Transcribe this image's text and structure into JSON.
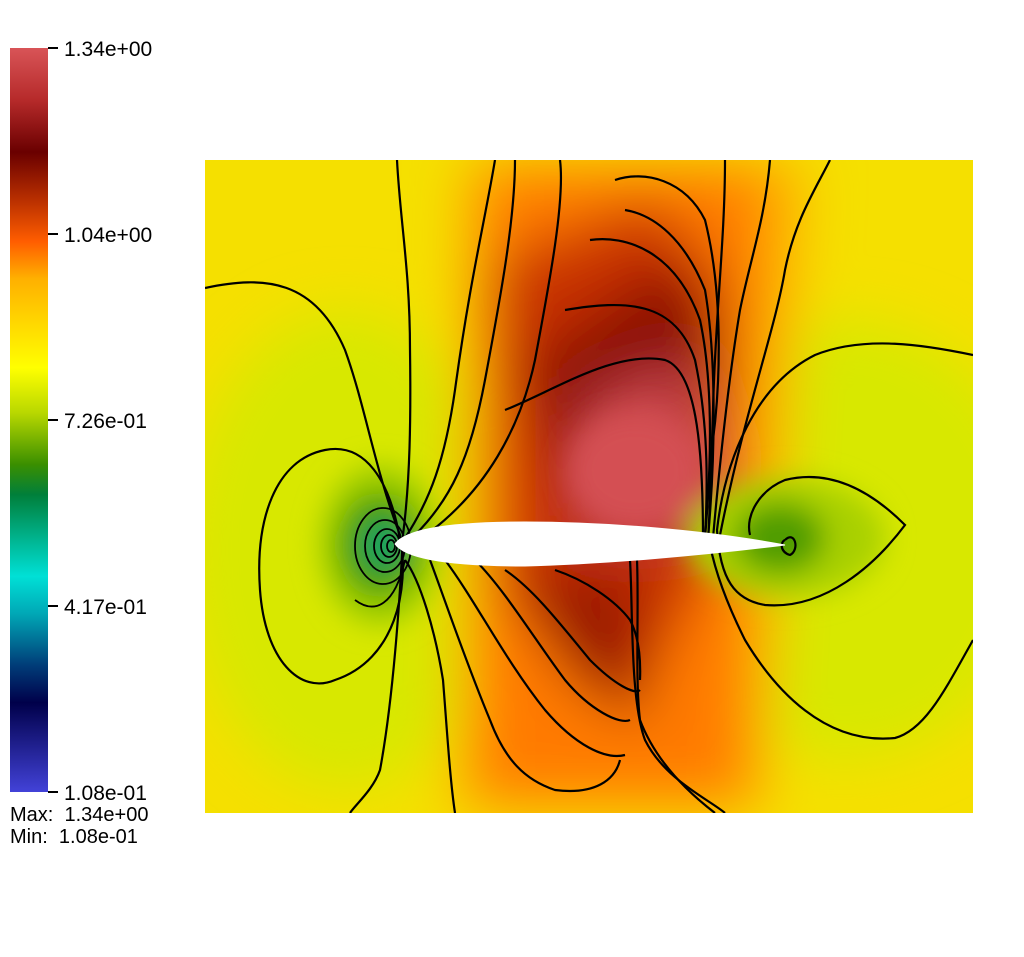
{
  "chart_data": {
    "type": "heatmap",
    "title": "",
    "xlabel": "",
    "ylabel": "",
    "colorbar": {
      "min": "1.08e-01",
      "max": "1.34e+00",
      "tick_labels": [
        "1.34e+00",
        "1.04e+00",
        "7.26e-01",
        "4.17e-01",
        "1.08e-01"
      ],
      "tick_values": [
        1.34,
        1.04,
        0.726,
        0.417,
        0.108
      ],
      "colormap": [
        "#4242d8",
        "#00004a",
        "#003c78",
        "#00e0d6",
        "#007f3a",
        "#3a8f00",
        "#ffff00",
        "#ffb000",
        "#ff5d00",
        "#c03400",
        "#6a0000",
        "#d85457"
      ]
    },
    "stats": {
      "max_label": "Max:",
      "max_value": "1.34e+00",
      "min_label": "Min:",
      "min_value": "1.08e-01"
    },
    "field_regions": [
      {
        "region": "background far field",
        "value": 0.84
      },
      {
        "region": "upper surface peak",
        "value": 1.32
      },
      {
        "region": "lower surface peak",
        "value": 1.2
      },
      {
        "region": "leading edge stagnation",
        "value": 0.45
      },
      {
        "region": "trailing edge stagnation",
        "value": 0.62
      }
    ],
    "contours": true,
    "object": "airfoil",
    "colors": {
      "contour": "#000000",
      "airfoil": "#ffffff"
    }
  }
}
